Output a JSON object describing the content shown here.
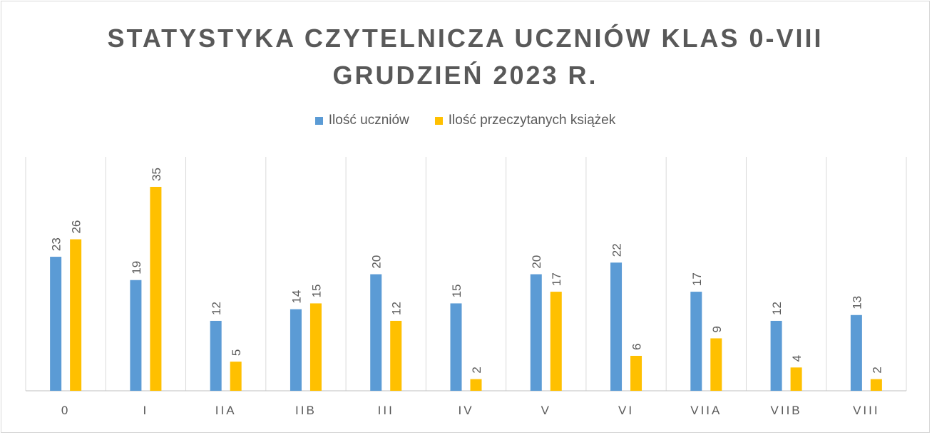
{
  "chart_data": {
    "type": "bar",
    "title_lines": [
      "STATYSTYKA CZYTELNICZA UCZNIÓW KLAS 0-VIII",
      "GRUDZIEŃ 2023 R."
    ],
    "categories": [
      "0",
      "I",
      "IIA",
      "IIB",
      "III",
      "IV",
      "V",
      "VI",
      "VIIA",
      "VIIB",
      "VIII"
    ],
    "series": [
      {
        "name": "Ilość uczniów",
        "color": "#5B9BD5",
        "values": [
          23,
          19,
          12,
          14,
          20,
          15,
          20,
          22,
          17,
          12,
          13
        ]
      },
      {
        "name": "Ilość przeczytanych książek",
        "color": "#FFC000",
        "values": [
          26,
          35,
          5,
          15,
          12,
          2,
          17,
          6,
          9,
          4,
          2
        ]
      }
    ],
    "ylim": [
      0,
      40
    ],
    "legend_position": "top",
    "grid": "vertical category separators",
    "data_labels": true,
    "xlabel": "",
    "ylabel": ""
  }
}
